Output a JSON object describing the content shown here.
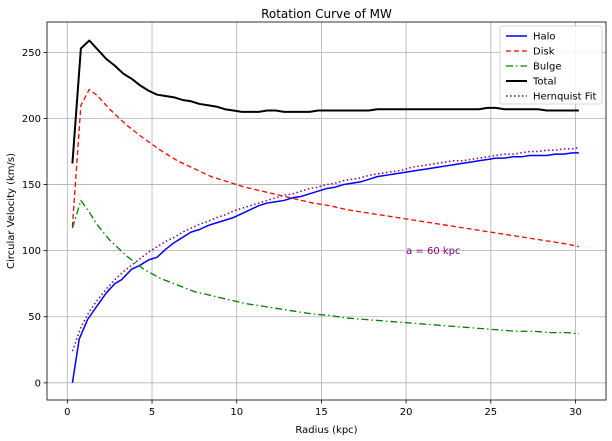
{
  "chart_data": {
    "type": "line",
    "title": "Rotation Curve of MW",
    "xlabel": "Radius (kpc)",
    "ylabel": "Circular Velocity (km/s)",
    "xlim": [
      -1.2,
      31.8
    ],
    "ylim": [
      -13,
      273
    ],
    "xticks": [
      0,
      5,
      10,
      15,
      20,
      25,
      30
    ],
    "yticks": [
      0,
      50,
      100,
      150,
      200,
      250
    ],
    "grid": true,
    "legend_position": "top-right",
    "annotation": {
      "text": "a = 60 kpc",
      "x": 20,
      "y": 100,
      "color": "#800080"
    },
    "series": [
      {
        "name": "Halo",
        "color": "#0000ff",
        "style": "solid",
        "width": 1.5,
        "points": [
          [
            0.3,
            0
          ],
          [
            0.7,
            33
          ],
          [
            1.2,
            48
          ],
          [
            1.8,
            59
          ],
          [
            2.3,
            68
          ],
          [
            2.8,
            75
          ],
          [
            3.2,
            78
          ],
          [
            3.8,
            86
          ],
          [
            4.3,
            89
          ],
          [
            4.8,
            93
          ],
          [
            5.3,
            95
          ],
          [
            5.8,
            101
          ],
          [
            6.3,
            106
          ],
          [
            6.8,
            110
          ],
          [
            7.3,
            114
          ],
          [
            7.8,
            116
          ],
          [
            8.3,
            119
          ],
          [
            8.8,
            121
          ],
          [
            9.3,
            123
          ],
          [
            9.8,
            125
          ],
          [
            10.3,
            128
          ],
          [
            10.8,
            131
          ],
          [
            11.3,
            134
          ],
          [
            11.8,
            136
          ],
          [
            12.3,
            137
          ],
          [
            12.8,
            138
          ],
          [
            13.3,
            140
          ],
          [
            13.8,
            141
          ],
          [
            14.3,
            143
          ],
          [
            14.8,
            145
          ],
          [
            15.3,
            147
          ],
          [
            15.8,
            148
          ],
          [
            16.3,
            150
          ],
          [
            16.8,
            151
          ],
          [
            17.3,
            152
          ],
          [
            17.8,
            154
          ],
          [
            18.3,
            156
          ],
          [
            18.8,
            157
          ],
          [
            19.3,
            158
          ],
          [
            19.8,
            159
          ],
          [
            20.3,
            160
          ],
          [
            20.8,
            161
          ],
          [
            21.3,
            162
          ],
          [
            21.8,
            163
          ],
          [
            22.3,
            164
          ],
          [
            22.8,
            165
          ],
          [
            23.3,
            166
          ],
          [
            23.8,
            167
          ],
          [
            24.3,
            168
          ],
          [
            24.8,
            169
          ],
          [
            25.3,
            170
          ],
          [
            25.8,
            170
          ],
          [
            26.3,
            171
          ],
          [
            26.8,
            171
          ],
          [
            27.3,
            172
          ],
          [
            27.8,
            172
          ],
          [
            28.3,
            172
          ],
          [
            28.8,
            173
          ],
          [
            29.3,
            173
          ],
          [
            29.8,
            174
          ],
          [
            30.2,
            174
          ]
        ]
      },
      {
        "name": "Disk",
        "color": "#ff0000",
        "style": "dashed",
        "width": 1.3,
        "points": [
          [
            0.3,
            118
          ],
          [
            0.8,
            210
          ],
          [
            1.3,
            222
          ],
          [
            1.8,
            217
          ],
          [
            2.5,
            207
          ],
          [
            3.5,
            195
          ],
          [
            4.5,
            185
          ],
          [
            5.5,
            176
          ],
          [
            6.5,
            168
          ],
          [
            7.5,
            162
          ],
          [
            8.5,
            156
          ],
          [
            9.5,
            152
          ],
          [
            10.5,
            148
          ],
          [
            11.5,
            145
          ],
          [
            12.5,
            142
          ],
          [
            13.5,
            139
          ],
          [
            14.5,
            136
          ],
          [
            15.5,
            134
          ],
          [
            16.5,
            131
          ],
          [
            17.5,
            129
          ],
          [
            18.5,
            127
          ],
          [
            19.5,
            125
          ],
          [
            20.5,
            123
          ],
          [
            21.5,
            121
          ],
          [
            22.5,
            119
          ],
          [
            23.5,
            117
          ],
          [
            24.5,
            115
          ],
          [
            25.5,
            113
          ],
          [
            26.5,
            111
          ],
          [
            27.5,
            109
          ],
          [
            28.5,
            107
          ],
          [
            29.5,
            105
          ],
          [
            30.2,
            103
          ]
        ]
      },
      {
        "name": "Bulge",
        "color": "#008000",
        "style": "dashdot",
        "width": 1.3,
        "points": [
          [
            0.3,
            117
          ],
          [
            0.8,
            138
          ],
          [
            1.3,
            129
          ],
          [
            1.8,
            119
          ],
          [
            2.5,
            108
          ],
          [
            3.5,
            96
          ],
          [
            4.5,
            86
          ],
          [
            5.5,
            79
          ],
          [
            6.5,
            74
          ],
          [
            7.5,
            69
          ],
          [
            8.5,
            66
          ],
          [
            9.5,
            63
          ],
          [
            10.5,
            60
          ],
          [
            11.5,
            58
          ],
          [
            12.5,
            56
          ],
          [
            13.5,
            54
          ],
          [
            14.5,
            52
          ],
          [
            15.5,
            51
          ],
          [
            16.5,
            49
          ],
          [
            17.5,
            48
          ],
          [
            18.5,
            47
          ],
          [
            19.5,
            46
          ],
          [
            20.5,
            45
          ],
          [
            21.5,
            44
          ],
          [
            22.5,
            43
          ],
          [
            23.5,
            42
          ],
          [
            24.5,
            41
          ],
          [
            25.5,
            40
          ],
          [
            26.5,
            39
          ],
          [
            27.5,
            39
          ],
          [
            28.5,
            38
          ],
          [
            29.5,
            38
          ],
          [
            30.2,
            37
          ]
        ]
      },
      {
        "name": "Total",
        "color": "#000000",
        "style": "solid",
        "width": 2,
        "points": [
          [
            0.3,
            166
          ],
          [
            0.8,
            253
          ],
          [
            1.3,
            259
          ],
          [
            1.8,
            252
          ],
          [
            2.3,
            245
          ],
          [
            2.8,
            240
          ],
          [
            3.3,
            234
          ],
          [
            3.8,
            230
          ],
          [
            4.3,
            225
          ],
          [
            4.8,
            221
          ],
          [
            5.3,
            218
          ],
          [
            5.8,
            217
          ],
          [
            6.3,
            216
          ],
          [
            6.8,
            214
          ],
          [
            7.3,
            213
          ],
          [
            7.8,
            211
          ],
          [
            8.3,
            210
          ],
          [
            8.8,
            209
          ],
          [
            9.3,
            207
          ],
          [
            9.8,
            206
          ],
          [
            10.3,
            205
          ],
          [
            10.8,
            205
          ],
          [
            11.3,
            205
          ],
          [
            11.8,
            206
          ],
          [
            12.3,
            206
          ],
          [
            12.8,
            205
          ],
          [
            13.3,
            205
          ],
          [
            13.8,
            205
          ],
          [
            14.3,
            205
          ],
          [
            14.8,
            206
          ],
          [
            15.3,
            206
          ],
          [
            15.8,
            206
          ],
          [
            16.3,
            206
          ],
          [
            16.8,
            206
          ],
          [
            17.3,
            206
          ],
          [
            17.8,
            206
          ],
          [
            18.3,
            207
          ],
          [
            18.8,
            207
          ],
          [
            19.3,
            207
          ],
          [
            19.8,
            207
          ],
          [
            20.3,
            207
          ],
          [
            20.8,
            207
          ],
          [
            21.3,
            207
          ],
          [
            21.8,
            207
          ],
          [
            22.3,
            207
          ],
          [
            22.8,
            207
          ],
          [
            23.3,
            207
          ],
          [
            23.8,
            207
          ],
          [
            24.3,
            207
          ],
          [
            24.8,
            208
          ],
          [
            25.3,
            208
          ],
          [
            25.8,
            207
          ],
          [
            26.3,
            207
          ],
          [
            26.8,
            207
          ],
          [
            27.3,
            207
          ],
          [
            27.8,
            207
          ],
          [
            28.3,
            206
          ],
          [
            28.8,
            206
          ],
          [
            29.3,
            206
          ],
          [
            29.8,
            206
          ],
          [
            30.2,
            206
          ]
        ]
      },
      {
        "name": "Hernquist Fit",
        "color": "#800080",
        "style": "dotted",
        "width": 1.5,
        "points": [
          [
            0.3,
            24
          ],
          [
            0.8,
            42
          ],
          [
            1.3,
            54
          ],
          [
            1.8,
            63
          ],
          [
            2.3,
            71
          ],
          [
            2.8,
            78
          ],
          [
            3.3,
            84
          ],
          [
            3.8,
            89
          ],
          [
            4.3,
            94
          ],
          [
            4.8,
            99
          ],
          [
            5.3,
            103
          ],
          [
            5.8,
            107
          ],
          [
            6.3,
            110
          ],
          [
            6.8,
            114
          ],
          [
            7.3,
            117
          ],
          [
            7.8,
            120
          ],
          [
            8.3,
            122
          ],
          [
            8.8,
            125
          ],
          [
            9.3,
            127
          ],
          [
            9.8,
            130
          ],
          [
            10.3,
            132
          ],
          [
            10.8,
            134
          ],
          [
            11.3,
            136
          ],
          [
            11.8,
            138
          ],
          [
            12.3,
            140
          ],
          [
            12.8,
            142
          ],
          [
            13.3,
            143
          ],
          [
            13.8,
            145
          ],
          [
            14.3,
            147
          ],
          [
            14.8,
            148
          ],
          [
            15.3,
            150
          ],
          [
            15.8,
            151
          ],
          [
            16.3,
            153
          ],
          [
            16.8,
            154
          ],
          [
            17.3,
            155
          ],
          [
            17.8,
            157
          ],
          [
            18.3,
            158
          ],
          [
            18.8,
            159
          ],
          [
            19.3,
            160
          ],
          [
            19.8,
            161
          ],
          [
            20.3,
            163
          ],
          [
            20.8,
            164
          ],
          [
            21.3,
            165
          ],
          [
            21.8,
            166
          ],
          [
            22.3,
            167
          ],
          [
            22.8,
            168
          ],
          [
            23.3,
            168
          ],
          [
            23.8,
            169
          ],
          [
            24.3,
            170
          ],
          [
            24.8,
            171
          ],
          [
            25.3,
            172
          ],
          [
            25.8,
            173
          ],
          [
            26.3,
            173
          ],
          [
            26.8,
            174
          ],
          [
            27.3,
            175
          ],
          [
            27.8,
            175
          ],
          [
            28.3,
            176
          ],
          [
            28.8,
            176
          ],
          [
            29.3,
            177
          ],
          [
            29.8,
            177
          ],
          [
            30.2,
            178
          ]
        ]
      }
    ]
  }
}
